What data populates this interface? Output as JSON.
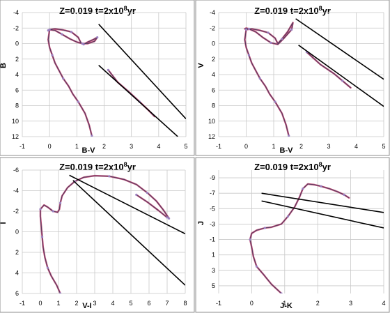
{
  "colors": {
    "isochrone": "#c0507a",
    "isochrone_core": "#3a3a5a",
    "markers": "#9a80c0",
    "reference_lines": "#000000",
    "grid": "#c8c8c8"
  },
  "chart_data": [
    {
      "type": "line",
      "title": "Z=0.019  t=2x10",
      "title_sup": "8",
      "title_end": "yr",
      "xlabel": "B-V",
      "ylabel": "B",
      "xlim": [
        -1,
        5
      ],
      "ylim": [
        12,
        -4
      ],
      "y_inverted": true,
      "xticks": [
        -1,
        0,
        1,
        2,
        3,
        4,
        5
      ],
      "yticks": [
        -4,
        -2,
        0,
        2,
        4,
        6,
        8,
        10,
        12
      ],
      "grid": true,
      "series": [
        {
          "kind": "isochrone",
          "x": [
            1.55,
            1.45,
            1.3,
            1.05,
            0.85,
            0.7,
            0.5,
            0.35,
            0.2,
            0.1,
            0.0,
            -0.05,
            0.0,
            0.2,
            0.5,
            0.8,
            1.05,
            1.15,
            1.25,
            1.4,
            1.6,
            1.75,
            1.65,
            1.4,
            1.2,
            1.0,
            0.75,
            0.45,
            0.2,
            0.0,
            -0.05
          ],
          "y": [
            11.9,
            10.5,
            9.0,
            7.5,
            6.5,
            5.5,
            4.5,
            3.5,
            2.5,
            1.5,
            0.5,
            -0.5,
            -1.8,
            -1.9,
            -1.75,
            -1.5,
            -0.8,
            -0.1,
            0.1,
            -0.2,
            -0.5,
            -0.8,
            -0.3,
            0.0,
            0.0,
            -0.2,
            -0.6,
            -1.2,
            -1.7,
            -1.8,
            -1.7
          ]
        },
        {
          "kind": "isochrone",
          "x": [
            2.15,
            2.5,
            2.9,
            3.3,
            3.6,
            3.85
          ],
          "y": [
            3.4,
            5.0,
            6.2,
            7.5,
            8.5,
            9.4
          ]
        },
        {
          "kind": "reference",
          "x": [
            1.8,
            5.0
          ],
          "y": [
            -2.5,
            9.7
          ]
        },
        {
          "kind": "reference",
          "x": [
            1.8,
            4.7
          ],
          "y": [
            2.8,
            12.0
          ]
        }
      ]
    },
    {
      "type": "line",
      "title": "Z=0.019  t=2x10",
      "title_sup": "8",
      "title_end": "yr",
      "xlabel": "B-V",
      "ylabel": "V",
      "xlim": [
        -1,
        5
      ],
      "ylim": [
        12,
        -4
      ],
      "y_inverted": true,
      "xticks": [
        -1,
        0,
        1,
        2,
        3,
        4,
        5
      ],
      "yticks": [
        -4,
        -2,
        0,
        2,
        4,
        6,
        8,
        10,
        12
      ],
      "grid": true,
      "series": [
        {
          "kind": "isochrone",
          "x": [
            1.55,
            1.45,
            1.3,
            1.05,
            0.85,
            0.7,
            0.5,
            0.35,
            0.2,
            0.1,
            0.0,
            -0.05,
            0.0,
            0.2,
            0.5,
            0.8,
            1.05,
            1.15,
            1.3,
            1.5,
            1.7,
            1.65,
            1.35,
            1.15,
            0.9,
            0.6,
            0.35,
            0.1,
            0.0,
            -0.05
          ],
          "y": [
            11.9,
            10.5,
            9.0,
            7.5,
            6.5,
            5.5,
            4.5,
            3.5,
            2.5,
            1.5,
            0.5,
            -0.5,
            -1.8,
            -1.9,
            -1.7,
            -1.4,
            -0.7,
            0.0,
            -0.6,
            -1.5,
            -2.7,
            -1.8,
            -0.6,
            0.1,
            -0.1,
            -0.8,
            -1.5,
            -1.9,
            -2.0,
            -1.9
          ]
        },
        {
          "kind": "isochrone",
          "x": [
            2.2,
            2.7,
            3.2,
            3.5,
            3.8
          ],
          "y": [
            1.1,
            2.7,
            3.9,
            4.8,
            5.7
          ]
        },
        {
          "kind": "reference",
          "x": [
            1.8,
            5.0
          ],
          "y": [
            -3.2,
            4.6
          ]
        },
        {
          "kind": "reference",
          "x": [
            1.9,
            5.0
          ],
          "y": [
            0.2,
            8.1
          ]
        }
      ]
    },
    {
      "type": "line",
      "title": "Z=0.019   t=2x10",
      "title_sup": "8",
      "title_end": "yr",
      "xlabel": "V-I",
      "ylabel": "I",
      "xlim": [
        -1,
        8
      ],
      "ylim": [
        6,
        -6
      ],
      "y_inverted": true,
      "xticks": [
        -1,
        0,
        1,
        2,
        3,
        4,
        5,
        6,
        7,
        8
      ],
      "yticks": [
        -6,
        -4,
        -2,
        0,
        2,
        4,
        6
      ],
      "grid": true,
      "series": [
        {
          "kind": "isochrone",
          "x": [
            1.1,
            0.9,
            0.6,
            0.4,
            0.25,
            0.15,
            0.1,
            0.05,
            0.0,
            0.0,
            0.2,
            0.4,
            0.7,
            0.95,
            1.05,
            1.1,
            1.2,
            1.5,
            1.9,
            2.4,
            3.0,
            3.8,
            4.6,
            5.3,
            5.9,
            6.4,
            6.8,
            7.1
          ],
          "y": [
            6.0,
            5.2,
            4.3,
            3.5,
            2.5,
            1.5,
            0.5,
            -0.5,
            -1.5,
            -2.2,
            -2.6,
            -2.4,
            -2.0,
            -1.9,
            -2.2,
            -2.8,
            -3.5,
            -4.3,
            -4.9,
            -5.3,
            -5.45,
            -5.4,
            -5.1,
            -4.6,
            -3.8,
            -3.0,
            -2.1,
            -1.3
          ]
        },
        {
          "kind": "isochrone",
          "x": [
            5.3,
            5.9,
            6.5,
            7.0
          ],
          "y": [
            -3.6,
            -2.9,
            -2.1,
            -1.4
          ]
        },
        {
          "kind": "reference",
          "x": [
            1.6,
            8.0
          ],
          "y": [
            -5.5,
            0.2
          ]
        },
        {
          "kind": "reference",
          "x": [
            1.8,
            8.0
          ],
          "y": [
            -5.0,
            5.2
          ]
        }
      ]
    },
    {
      "type": "line",
      "title": "Z=0.019  t=2x10",
      "title_sup": "8",
      "title_end": "yr",
      "xlabel": "J-K",
      "ylabel": "J",
      "xlim": [
        -1,
        4
      ],
      "ylim": [
        6,
        -10
      ],
      "y_inverted": true,
      "xticks": [
        -1,
        0,
        1,
        2,
        3,
        4
      ],
      "yticks": [
        -9,
        -7,
        -5,
        -3,
        -1,
        1,
        3,
        5
      ],
      "ytick_labels": [
        "-9",
        "-7",
        "-5",
        "-3",
        "-1",
        "1",
        "3",
        "5"
      ],
      "grid": true,
      "series": [
        {
          "kind": "isochrone",
          "x": [
            0.9,
            0.6,
            0.35,
            0.15,
            0.05,
            0.0,
            -0.05,
            0.0,
            0.15,
            0.4,
            0.6,
            0.9,
            1.1,
            1.3,
            1.45,
            1.55,
            1.7,
            1.9,
            2.1,
            2.35,
            2.6,
            2.8,
            2.95
          ],
          "y": [
            6.0,
            4.8,
            3.5,
            2.5,
            1.2,
            0.0,
            -1.0,
            -1.8,
            -2.2,
            -2.5,
            -2.6,
            -3.0,
            -4.0,
            -5.2,
            -6.5,
            -7.6,
            -8.2,
            -8.1,
            -7.9,
            -7.6,
            -7.2,
            -6.8,
            -6.4
          ]
        },
        {
          "kind": "reference",
          "x": [
            0.3,
            4.0
          ],
          "y": [
            -7.0,
            -4.5
          ]
        },
        {
          "kind": "reference",
          "x": [
            0.3,
            4.0
          ],
          "y": [
            -6.0,
            -2.5
          ]
        }
      ]
    }
  ]
}
